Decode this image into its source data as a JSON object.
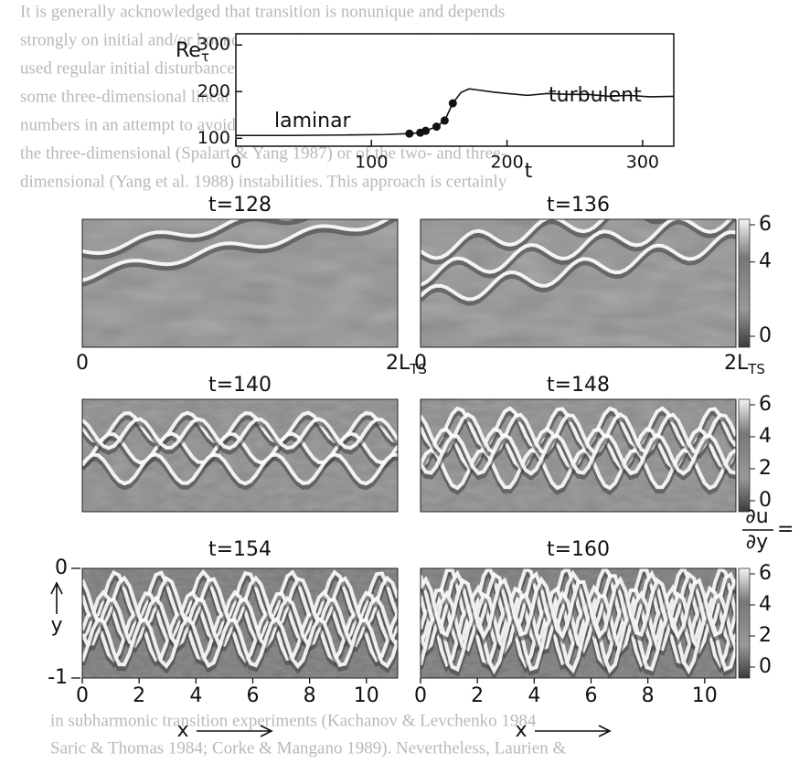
{
  "background_text": [
    "It is generally acknowledged that transition is nonunique and depends",
    "strongly on initial and/or boundary conditions. Most simulations have",
    "used regular initial disturbances consisting of a dominant TS wave and",
    "some three-dimensional linear eigensolutions. Some workers used random",
    "numbers in an attempt to avoid bias and to obtain a natural selection of",
    "the three-dimensional (Spalart & Yang 1987) or of the two- and three-",
    "dimensional (Yang et al. 1988) instabilities. This approach is certainly"
  ],
  "background_text_bottom": [
    "in subharmonic transition experiments (Kachanov & Levchenko 1984",
    "Saric & Thomas 1984; Corke & Mangano 1989). Nevertheless, Laurien &"
  ],
  "chart_data": {
    "type": "line",
    "y_label": "Re",
    "y_label_subscript": "τ",
    "x_label": "t",
    "xlim": [
      0,
      323
    ],
    "xticks": [
      0,
      100,
      200,
      300
    ],
    "ylim": [
      83,
      324
    ],
    "yticks": [
      100,
      200,
      300
    ],
    "annotations": [
      "laminar",
      "turbulent"
    ],
    "x": [
      0,
      40,
      80,
      110,
      128,
      136,
      140,
      148,
      154,
      160,
      166,
      172,
      180,
      190,
      200,
      215,
      230,
      245,
      260,
      275,
      290,
      305,
      323
    ],
    "values": [
      106,
      106,
      107,
      108,
      110,
      112,
      116,
      125,
      138,
      175,
      198,
      206,
      203,
      199,
      196,
      192,
      196,
      194,
      194,
      190,
      192,
      189,
      190
    ],
    "markers": {
      "x": [
        128,
        136,
        140,
        148,
        154,
        160
      ],
      "values": [
        110,
        112,
        116,
        125,
        138,
        175
      ]
    }
  },
  "figure": {
    "panels": [
      {
        "title": "t=128"
      },
      {
        "title": "t=136"
      },
      {
        "title": "t=140"
      },
      {
        "title": "t=148"
      },
      {
        "title": "t=154"
      },
      {
        "title": "t=160"
      }
    ],
    "colorbar_range": [
      0,
      6
    ],
    "colorbar_ticks": [
      [
        6,
        4,
        0
      ],
      [
        6,
        4,
        2,
        0
      ],
      [
        6,
        4,
        2,
        0
      ]
    ],
    "colorbar_label": {
      "numerator": "∂u",
      "denominator": "∂y",
      "suffix": "="
    },
    "row1_x_start": "0",
    "row1_x_end": "2L",
    "row1_x_end_subscript": "TS",
    "x_label": "x",
    "y_label": "y",
    "xlim": [
      0,
      11.1
    ],
    "xticks": [
      0,
      2,
      4,
      6,
      8,
      10
    ],
    "ylim": [
      -1,
      0
    ],
    "yticks": [
      0,
      -1
    ]
  }
}
